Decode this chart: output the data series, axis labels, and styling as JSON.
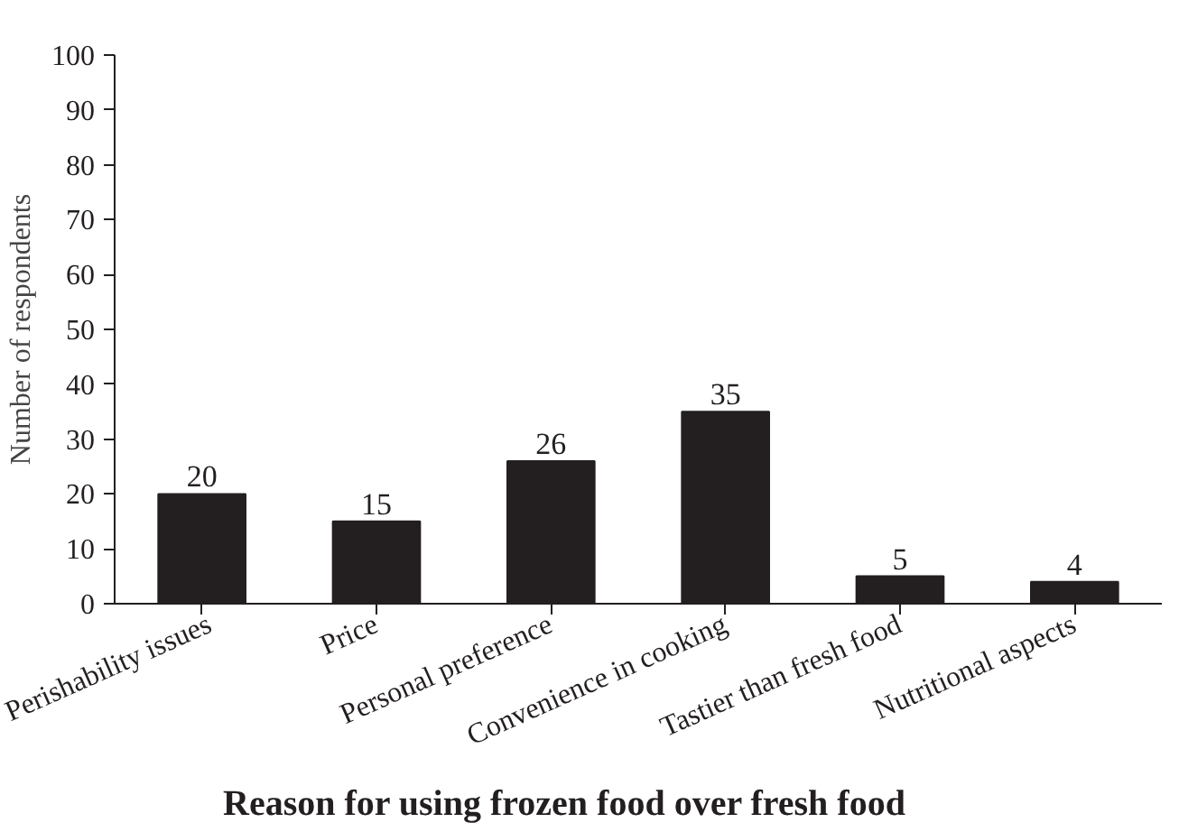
{
  "chart_data": {
    "type": "bar",
    "title": "Reason for using frozen food over fresh food",
    "ylabel": "Number of respondents",
    "categories": [
      "Perishability issues",
      "Price",
      "Personal preference",
      "Convenience in cooking",
      "Tastier than fresh food",
      "Nutritional aspects"
    ],
    "values": [
      20,
      15,
      26,
      35,
      5,
      4
    ],
    "data_labels": true,
    "color": "#231f20",
    "ylim": [
      0,
      100
    ],
    "yticks": [
      0,
      10,
      20,
      30,
      40,
      50,
      60,
      70,
      80,
      90,
      100
    ],
    "grid": false
  }
}
